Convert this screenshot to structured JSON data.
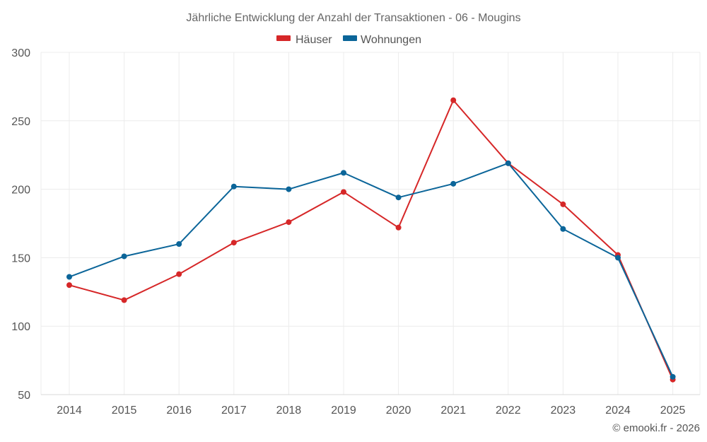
{
  "chart_data": {
    "type": "line",
    "title": "Jährliche Entwicklung der Anzahl der Transaktionen - 06 - Mougins",
    "categories": [
      "2014",
      "2015",
      "2016",
      "2017",
      "2018",
      "2019",
      "2020",
      "2021",
      "2022",
      "2023",
      "2024",
      "2025"
    ],
    "series": [
      {
        "name": "Häuser",
        "color": "#d62728",
        "values": [
          130,
          119,
          138,
          161,
          176,
          198,
          172,
          265,
          219,
          189,
          152,
          61
        ]
      },
      {
        "name": "Wohnungen",
        "color": "#0b6599",
        "values": [
          136,
          151,
          160,
          202,
          200,
          212,
          194,
          204,
          219,
          171,
          150,
          63
        ]
      }
    ],
    "ylim": [
      50,
      300
    ],
    "yticks": [
      50,
      100,
      150,
      200,
      250,
      300
    ],
    "legend_position": "top-center",
    "grid": true,
    "xlabel": "",
    "ylabel": ""
  },
  "credit": "© emooki.fr - 2026"
}
